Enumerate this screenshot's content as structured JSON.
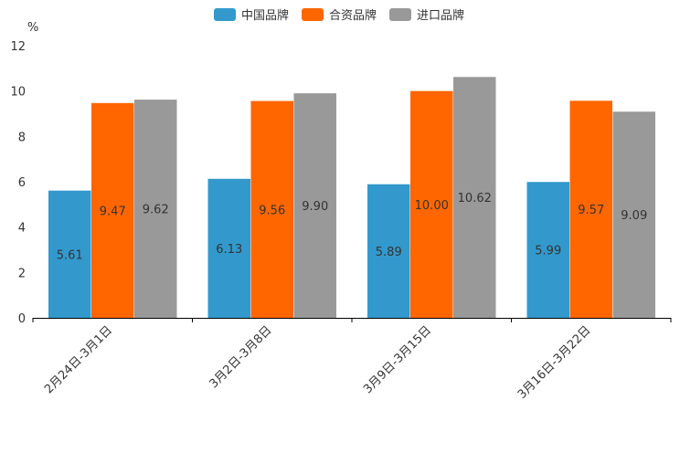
{
  "chart_data": {
    "type": "bar",
    "title": "",
    "xlabel": "",
    "ylabel": "%",
    "ylim": [
      0,
      12
    ],
    "yticks": [
      0,
      2,
      4,
      6,
      8,
      10,
      12
    ],
    "grid": false,
    "legend_position": "top-center",
    "categories": [
      "2月24日-3月1日",
      "3月2日-3月8日",
      "3月9日-3月15日",
      "3月16日-3月22日"
    ],
    "series": [
      {
        "name": "中国品牌",
        "color": "#3399cc",
        "values": [
          5.61,
          6.13,
          5.89,
          5.99
        ],
        "labels": [
          "5.61",
          "6.13",
          "5.89",
          "5.99"
        ]
      },
      {
        "name": "合资品牌",
        "color": "#ff6600",
        "values": [
          9.47,
          9.56,
          10.0,
          9.57
        ],
        "labels": [
          "9.47",
          "9.56",
          "10.00",
          "9.57"
        ]
      },
      {
        "name": "进口品牌",
        "color": "#999999",
        "values": [
          9.62,
          9.9,
          10.62,
          9.09
        ],
        "labels": [
          "9.62",
          "9.90",
          "10.62",
          "9.09"
        ]
      }
    ]
  }
}
